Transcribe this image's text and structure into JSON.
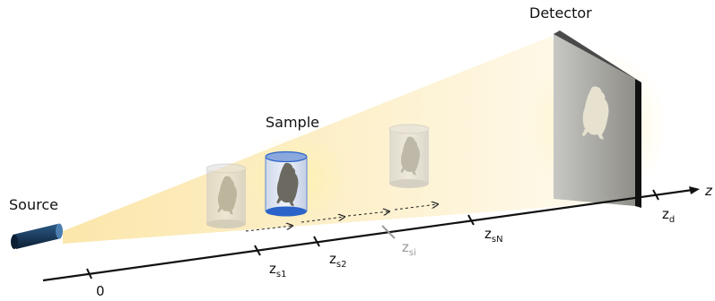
{
  "labels": {
    "source": "Source",
    "sample": "Sample",
    "detector": "Detector",
    "axis": "z"
  },
  "ticks": [
    {
      "main": "0",
      "sub": ""
    },
    {
      "main": "z",
      "sub": "s1"
    },
    {
      "main": "z",
      "sub": "s2"
    },
    {
      "main": "z",
      "sub": "si"
    },
    {
      "main": "z",
      "sub": "sN"
    },
    {
      "main": "z",
      "sub": "d"
    }
  ],
  "colors": {
    "beam": "#fbe5a6",
    "source_body": "#0f2a44",
    "source_cap": "#2c5a86",
    "sample_highlight": "#2b63c8",
    "faded_tick": "#9a9a9a",
    "detector_frame": "#111111"
  }
}
